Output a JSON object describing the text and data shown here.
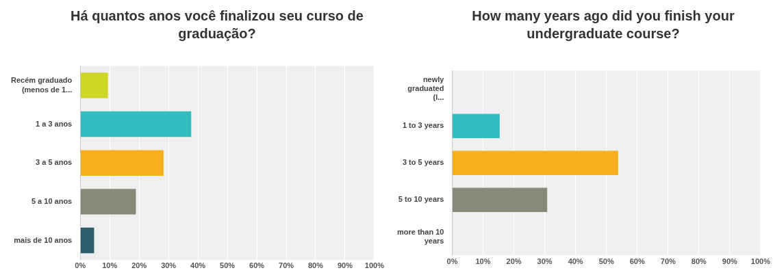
{
  "chart_data": [
    {
      "type": "bar",
      "orientation": "horizontal",
      "title": "Há quantos anos você finalizou seu curso de graduação?",
      "categories": [
        "Recém graduado (menos de 1...",
        "1 a 3 anos",
        "3 a 5 anos",
        "5 a 10 anos",
        "mais de 10 anos"
      ],
      "values": [
        9.4,
        37.7,
        28.3,
        18.9,
        4.7
      ],
      "colors": [
        "#cdd525",
        "#33bdbf",
        "#f6ae1f",
        "#888a79",
        "#2c5e6a"
      ],
      "xlim": [
        0,
        100
      ],
      "xticks": [
        {
          "value": 0,
          "label": "0%"
        },
        {
          "value": 10,
          "label": "10%"
        },
        {
          "value": 20,
          "label": "20%"
        },
        {
          "value": 30,
          "label": "30%"
        },
        {
          "value": 40,
          "label": "40%"
        },
        {
          "value": 50,
          "label": "50%"
        },
        {
          "value": 60,
          "label": "60%"
        },
        {
          "value": 70,
          "label": "70%"
        },
        {
          "value": 80,
          "label": "80%"
        },
        {
          "value": 90,
          "label": "90%"
        },
        {
          "value": 100,
          "label": "100%"
        }
      ],
      "grid": "x",
      "legend": false
    },
    {
      "type": "bar",
      "orientation": "horizontal",
      "title": "How many years ago did you finish your undergraduate course?",
      "categories": [
        "newly graduated (l...",
        "1 to 3 years",
        "3 to 5 years",
        "5 to 10 years",
        "more than 10 years"
      ],
      "values": [
        0,
        15.4,
        53.8,
        30.8,
        0
      ],
      "colors": [
        "#cdd525",
        "#33bdbf",
        "#f6ae1f",
        "#888a79",
        "#2c5e6a"
      ],
      "xlim": [
        0,
        100
      ],
      "xticks": [
        {
          "value": 0,
          "label": "0%"
        },
        {
          "value": 10,
          "label": "10%"
        },
        {
          "value": 20,
          "label": "20%"
        },
        {
          "value": 30,
          "label": "30%"
        },
        {
          "value": 40,
          "label": "40%"
        },
        {
          "value": 50,
          "label": "50%"
        },
        {
          "value": 60,
          "label": "60%"
        },
        {
          "value": 70,
          "label": "70%"
        },
        {
          "value": 80,
          "label": "80%"
        },
        {
          "value": 90,
          "label": "90%"
        },
        {
          "value": 100,
          "label": "100%"
        }
      ],
      "grid": "x",
      "legend": false
    }
  ]
}
